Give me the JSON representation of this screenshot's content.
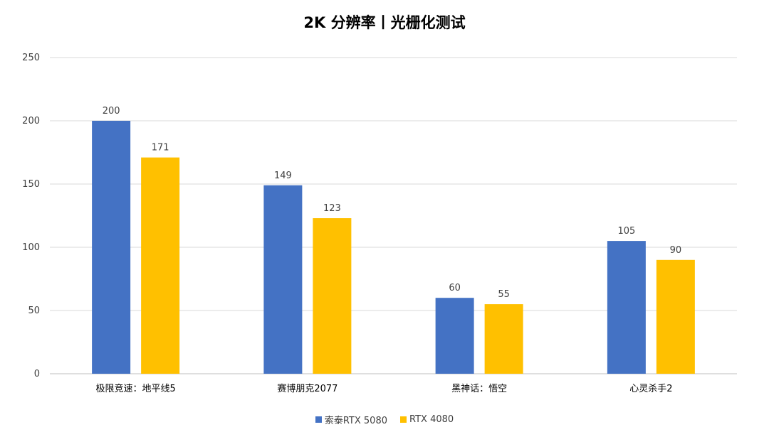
{
  "chart_data": {
    "type": "bar",
    "title": "2K 分辨率丨光栅化测试",
    "categories": [
      "极限竞速：地平线5",
      "赛博朋克2077",
      "黑神话：悟空",
      "心灵杀手2"
    ],
    "series": [
      {
        "name": "索泰RTX 5080",
        "values": [
          200,
          149,
          60,
          105
        ],
        "color": "#4472C4"
      },
      {
        "name": "RTX 4080",
        "values": [
          171,
          123,
          55,
          90
        ],
        "color": "#FFC000"
      }
    ],
    "ylim": [
      0,
      250
    ],
    "yticks": [
      0,
      50,
      100,
      150,
      200,
      250
    ],
    "grid": true,
    "legend_position": "bottom",
    "data_labels": true
  }
}
